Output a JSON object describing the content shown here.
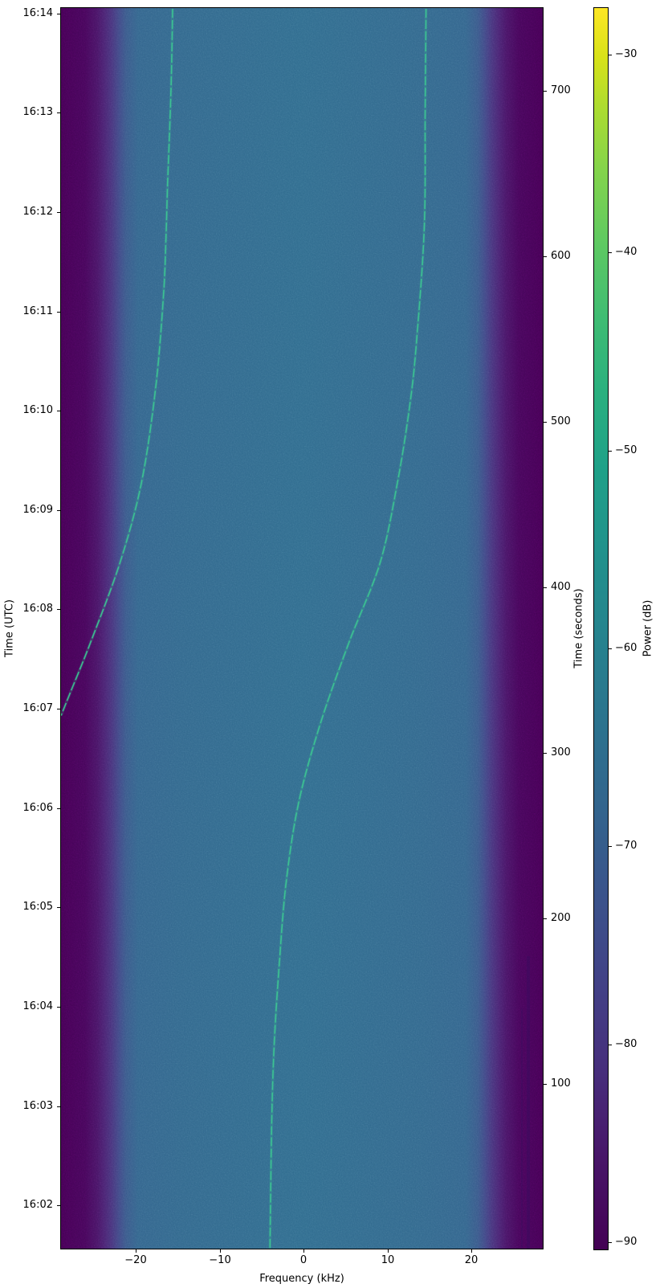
{
  "chart_data": {
    "type": "heatmap",
    "subtype": "spectrogram-waterfall",
    "colormap": "viridis",
    "grid": false,
    "xlabel": "Frequency (kHz)",
    "x_ticks": [
      -20,
      -10,
      0,
      10,
      20
    ],
    "x_tick_labels": [
      "−20",
      "−10",
      "0",
      "10",
      "20"
    ],
    "xlim_khz": [
      -29.0,
      28.6
    ],
    "ylabel_left": "Time (UTC)",
    "y_tick_labels_left": [
      "16:14",
      "16:13",
      "16:12",
      "16:11",
      "16:10",
      "16:09",
      "16:08",
      "16:07",
      "16:06",
      "16:05",
      "16:04",
      "16:03",
      "16:02"
    ],
    "ylabel_right": "Time (seconds)",
    "y_ticks_right": [
      700,
      600,
      500,
      400,
      300,
      200,
      100
    ],
    "ylim_seconds": [
      0,
      750.5
    ],
    "colorbar": {
      "label": "Power (dB)",
      "ticks": [
        -30,
        -40,
        -50,
        -60,
        -70,
        -80,
        -90
      ],
      "tick_labels": [
        "−30",
        "−40",
        "−50",
        "−60",
        "−70",
        "−80",
        "−90"
      ],
      "vmin": -90.4,
      "vmax": -27.6
    },
    "series": [
      {
        "name": "doppler-trace-left",
        "points_freq_khz_time_s": [
          [
            -15.7,
            750
          ],
          [
            -15.9,
            700
          ],
          [
            -16.3,
            644
          ],
          [
            -16.5,
            610
          ],
          [
            -16.8,
            576
          ],
          [
            -17.7,
            522
          ],
          [
            -19.4,
            464
          ],
          [
            -22.0,
            415
          ],
          [
            -25.5,
            367
          ],
          [
            -27.8,
            338
          ],
          [
            -29.0,
            323
          ]
        ]
      },
      {
        "name": "doppler-trace-right",
        "points_freq_khz_time_s": [
          [
            14.5,
            750
          ],
          [
            14.4,
            690
          ],
          [
            14.3,
            619
          ],
          [
            13.4,
            551
          ],
          [
            12.6,
            512
          ],
          [
            11.1,
            464
          ],
          [
            9.0,
            415
          ],
          [
            5.3,
            367
          ],
          [
            1.9,
            318
          ],
          [
            -0.7,
            270
          ],
          [
            -2.2,
            221
          ],
          [
            -3.0,
            172
          ],
          [
            -3.6,
            124
          ],
          [
            -3.9,
            75
          ],
          [
            -4.1,
            0
          ]
        ]
      }
    ]
  },
  "colors": {
    "figure_background": "#ffffff",
    "heatmap_low": "#440154",
    "heatmap_noise_floor": "#31688e",
    "trace": "#3cc492",
    "axis": "#000000"
  }
}
